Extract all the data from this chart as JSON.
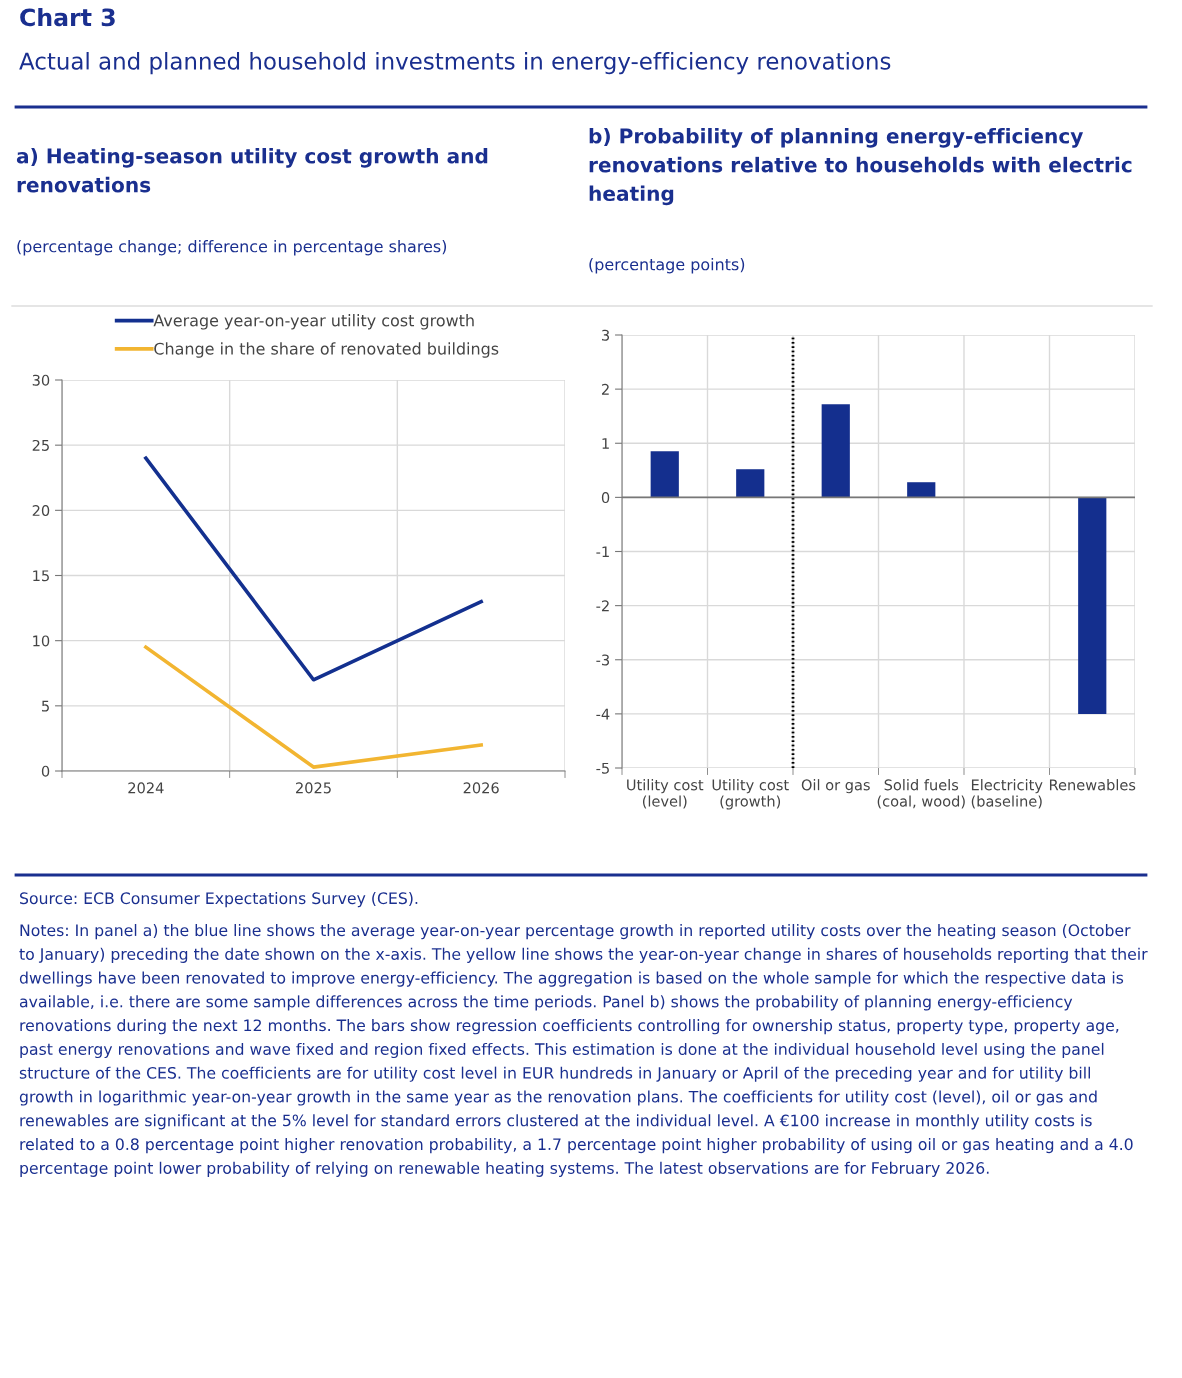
{
  "chart_data": [
    {
      "type": "other",
      "title": "Chart 3",
      "subtitle": "Actual and planned household investments in energy-efficiency renovations",
      "annotations": [
        "Source: ECB Consumer Expectations Survey (CES).",
        "Notes: In panel a) the blue line shows the average year-on-year percentage growth in reported utility costs over the heating season (October to January) preceding the date shown on the x-axis. The yellow line shows the year-on-year change in shares of households reporting that their dwellings have been renovated to improve energy-efficiency. The aggregation is based on the whole sample for which the respective data is available, i.e. there are some sample differences across the time periods. Panel b) shows the probability of planning energy-efficiency renovations during the next 12 months. The bars show regression coefficients controlling for ownership status, property type, property age, past energy renovations and wave fixed and region fixed effects. This estimation is done at the individual household level using the panel structure of the CES. The coefficients are for utility cost level in EUR hundreds in January or April of the preceding year and for utility bill growth in logarithmic year-on-year growth in the same year as the renovation plans. The coefficients for utility cost (level), oil or gas and renewables are significant at the 5% level for standard errors clustered at the individual level. A €100 increase in monthly utility costs is related to a 0.8 percentage point higher renovation probability, a 1.7 percentage point higher probability of using oil or gas heating and a 4.0 percentage point lower probability of relying on renewable heating systems. The latest observations are for February 2026."
      ]
    },
    {
      "type": "line",
      "title": "a) Heating-season utility cost growth and renovations",
      "subtitle": "(percentage change; difference in percentage shares)",
      "categories": [
        "2024",
        "2025",
        "2026"
      ],
      "series": [
        {
          "name": "Average year-on-year utility cost growth",
          "color": "#13308f",
          "values": [
            24,
            7,
            13
          ]
        },
        {
          "name": "Change in the share of renovated buildings",
          "color": "#f2b531",
          "values": [
            9.5,
            0.3,
            2.0
          ]
        }
      ],
      "ylim": [
        0,
        30
      ],
      "yticks": [
        0,
        5,
        10,
        15,
        20,
        25,
        30
      ],
      "grid": true,
      "legend": "top left",
      "marker": "none",
      "line_style": "solid"
    },
    {
      "type": "bar",
      "title": "b) Probability of planning energy-efficiency renovations relative to households with electric heating",
      "subtitle": "(percentage points)",
      "categories": [
        "Utility cost (level)",
        "Utility cost (growth)",
        "Oil or gas",
        "Solid fuels (coal, wood)",
        "Electricity (baseline)",
        "Renewables"
      ],
      "values": [
        0.85,
        0.52,
        1.72,
        0.28,
        0,
        -4.0
      ],
      "color": "#142f8e",
      "ylim": [
        -5,
        3
      ],
      "yticks": [
        -5,
        -4,
        -3,
        -2,
        -1,
        0,
        1,
        2,
        3
      ],
      "grid": true
    }
  ]
}
